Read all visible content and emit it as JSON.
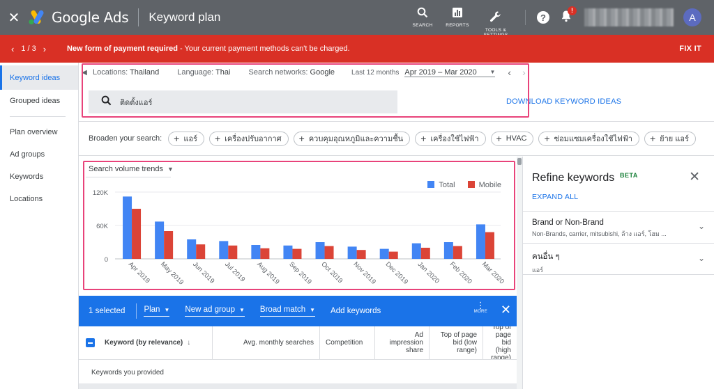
{
  "header": {
    "app_name": "Google Ads",
    "page_title": "Keyword plan",
    "search_label": "SEARCH",
    "reports_label": "REPORTS",
    "tools_label": "TOOLS &\nSETTINGS",
    "notification_badge": "!",
    "avatar_letter": "A"
  },
  "alert": {
    "counter": "1 / 3",
    "title": "New form of payment required",
    "message": " - Your current payment methods can't be charged.",
    "action": "FIX IT"
  },
  "sidebar": {
    "items": [
      {
        "label": "Keyword ideas",
        "active": true
      },
      {
        "label": "Grouped ideas"
      },
      {
        "label": "Plan overview"
      },
      {
        "label": "Ad groups"
      },
      {
        "label": "Keywords"
      },
      {
        "label": "Locations"
      }
    ]
  },
  "filters": {
    "locations_label": "Locations:",
    "locations_value": "Thailand",
    "language_label": "Language:",
    "language_value": "Thai",
    "networks_label": "Search networks:",
    "networks_value": "Google",
    "period_label": "Last 12 months",
    "date_range": "Apr 2019 – Mar 2020"
  },
  "search": {
    "query": "ติดตั้งแอร์"
  },
  "download_label": "DOWNLOAD KEYWORD IDEAS",
  "broaden": {
    "label": "Broaden your search:",
    "chips": [
      "แอร์",
      "เครื่องปรับอากาศ",
      "ควบคุมอุณหภูมิและความชื้น",
      "เครื่องใช้ไฟฟ้า",
      "HVAC",
      "ซ่อมแซมเครื่องใช้ไฟฟ้า",
      "ย้าย แอร์"
    ]
  },
  "trend_select": "Search volume trends",
  "chart_data": {
    "type": "bar",
    "categories": [
      "Apr 2019",
      "May 2019",
      "Jun 2019",
      "Jul 2019",
      "Aug 2019",
      "Sep 2019",
      "Oct 2019",
      "Nov 2019",
      "Dec 2019",
      "Jan 2020",
      "Feb 2020",
      "Mar 2020"
    ],
    "series": [
      {
        "name": "Total",
        "color": "#4285f4",
        "values": [
          112000,
          67000,
          35000,
          32000,
          25000,
          24000,
          30000,
          22000,
          18000,
          28000,
          30000,
          62000
        ]
      },
      {
        "name": "Mobile",
        "color": "#db4437",
        "values": [
          90000,
          50000,
          26000,
          24000,
          19000,
          18000,
          23000,
          16000,
          13000,
          20000,
          23000,
          48000
        ]
      }
    ],
    "yticks": [
      "0",
      "60K",
      "120K"
    ],
    "ylim": [
      0,
      120000
    ],
    "grid": true,
    "legend_position": "top-right"
  },
  "selection": {
    "count": "1 selected",
    "plan": "Plan",
    "new_ad_group": "New ad group",
    "match": "Broad match",
    "add_keywords": "Add keywords",
    "more": "MORE"
  },
  "table": {
    "headers": {
      "keyword": "Keyword (by relevance)",
      "avg": "Avg. monthly searches",
      "competition": "Competition",
      "impression_share": "Ad impression share",
      "top_low": "Top of page bid (low range)",
      "top_high": "Top of page bid (high range)"
    },
    "provided": "Keywords you provided"
  },
  "refine": {
    "title": "Refine keywords",
    "beta": "BETA",
    "expand_all": "EXPAND ALL",
    "rows": [
      {
        "title": "Brand or Non-Brand",
        "subtitle": "Non-Brands, carrier, mitsubishi, ล้าง แอร์, โฮม ..."
      },
      {
        "title": "คนอื่น ๆ",
        "subtitle": "แอร์"
      }
    ]
  }
}
